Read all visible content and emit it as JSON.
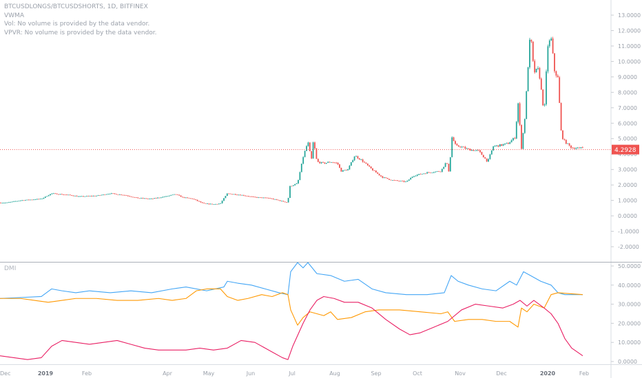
{
  "legend": {
    "symbol_line": "BTCUSDLONGS/BTCUSDSHORTS, 1D, BITFINEX",
    "indicator_1": "VWMA",
    "indicator_2": "Vol: No volume is provided by the data vendor.",
    "indicator_3": "VPVR: No volume is provided by the data vendor."
  },
  "lower_pane_label": "DMI",
  "price_badge": "4.2928",
  "colors": {
    "up": "#26a69a",
    "down": "#ef5350",
    "price_line": "#ef5350",
    "plus_di": "#42a5f5",
    "minus_di": "#ff9800",
    "adx": "#e91e63",
    "grid_divider": "#aab0b8"
  },
  "chart_data": [
    {
      "type": "candlestick",
      "title": "BTCUSDLONGS/BTCUSDSHORTS, 1D, BITFINEX",
      "ylim": [
        -3,
        13.6
      ],
      "y_ticks": [
        -2,
        -1,
        0,
        1,
        2,
        3,
        4,
        5,
        6,
        7,
        8,
        9,
        10,
        11,
        12,
        13
      ],
      "y_tick_labels": [
        "-2.0000",
        "-1.0000",
        "0.0000",
        "1.0000",
        "2.0000",
        "3.0000",
        "4.0000",
        "5.0000",
        "6.0000",
        "7.0000",
        "8.0000",
        "9.0000",
        "10.0000",
        "11.0000",
        "12.0000",
        "13.0000"
      ],
      "last_price": 4.2928,
      "x_labels": [
        "Dec",
        "2019",
        "Feb",
        "Apr",
        "May",
        "Jun",
        "Jul",
        "Aug",
        "Sep",
        "Oct",
        "Nov",
        "Dec",
        "2020",
        "Feb"
      ],
      "close_series_keypoints": [
        [
          0,
          0.85
        ],
        [
          10,
          0.85
        ],
        [
          30,
          1.0
        ],
        [
          60,
          1.1
        ],
        [
          75,
          1.45
        ],
        [
          100,
          1.35
        ],
        [
          115,
          1.25
        ],
        [
          140,
          1.3
        ],
        [
          160,
          1.45
        ],
        [
          180,
          1.35
        ],
        [
          200,
          1.15
        ],
        [
          220,
          1.1
        ],
        [
          240,
          1.25
        ],
        [
          255,
          1.4
        ],
        [
          265,
          1.2
        ],
        [
          280,
          1.1
        ],
        [
          295,
          0.8
        ],
        [
          310,
          0.75
        ],
        [
          320,
          0.8
        ],
        [
          330,
          1.45
        ],
        [
          350,
          1.35
        ],
        [
          370,
          1.2
        ],
        [
          390,
          1.15
        ],
        [
          405,
          1.0
        ],
        [
          418,
          0.85
        ],
        [
          420,
          1.9
        ],
        [
          432,
          2.1
        ],
        [
          440,
          3.8
        ],
        [
          447,
          4.8
        ],
        [
          452,
          3.6
        ],
        [
          455,
          4.9
        ],
        [
          460,
          3.5
        ],
        [
          470,
          3.4
        ],
        [
          480,
          3.5
        ],
        [
          490,
          3.4
        ],
        [
          495,
          2.9
        ],
        [
          505,
          3.0
        ],
        [
          515,
          3.9
        ],
        [
          525,
          3.6
        ],
        [
          540,
          3.0
        ],
        [
          555,
          2.5
        ],
        [
          570,
          2.3
        ],
        [
          590,
          2.2
        ],
        [
          600,
          2.6
        ],
        [
          620,
          2.8
        ],
        [
          640,
          2.9
        ],
        [
          648,
          3.5
        ],
        [
          652,
          2.8
        ],
        [
          656,
          5.1
        ],
        [
          662,
          4.5
        ],
        [
          668,
          4.5
        ],
        [
          680,
          4.3
        ],
        [
          695,
          4.2
        ],
        [
          708,
          3.5
        ],
        [
          716,
          4.5
        ],
        [
          730,
          4.6
        ],
        [
          738,
          4.7
        ],
        [
          748,
          5.1
        ],
        [
          752,
          7.4
        ],
        [
          757,
          4.4
        ],
        [
          762,
          6.4
        ],
        [
          767,
          10.0
        ],
        [
          770,
          11.9
        ],
        [
          775,
          9.3
        ],
        [
          782,
          9.5
        ],
        [
          790,
          6.6
        ],
        [
          795,
          11.0
        ],
        [
          800,
          11.5
        ],
        [
          805,
          9.4
        ],
        [
          810,
          8.9
        ],
        [
          815,
          5.2
        ],
        [
          820,
          4.8
        ],
        [
          830,
          4.4
        ],
        [
          838,
          4.4
        ],
        [
          843,
          4.3
        ],
        [
          845,
          5.0
        ],
        [
          846,
          4.29
        ]
      ]
    },
    {
      "type": "line",
      "title": "DMI",
      "ylim": [
        -1,
        53
      ],
      "y_ticks": [
        0,
        10,
        20,
        30,
        40,
        50
      ],
      "y_tick_labels": [
        "0.0000",
        "10.0000",
        "20.0000",
        "30.0000",
        "40.0000",
        "50.0000"
      ],
      "series": [
        {
          "color": "#42a5f5",
          "points": [
            [
              0,
              33
            ],
            [
              30,
              33.5
            ],
            [
              60,
              34
            ],
            [
              75,
              38
            ],
            [
              90,
              37
            ],
            [
              110,
              36
            ],
            [
              130,
              37
            ],
            [
              160,
              36
            ],
            [
              190,
              37
            ],
            [
              220,
              36
            ],
            [
              250,
              38
            ],
            [
              270,
              39
            ],
            [
              300,
              37
            ],
            [
              325,
              39
            ],
            [
              330,
              42
            ],
            [
              345,
              41
            ],
            [
              365,
              40
            ],
            [
              385,
              38
            ],
            [
              405,
              36
            ],
            [
              418,
              35
            ],
            [
              422,
              47
            ],
            [
              432,
              52
            ],
            [
              440,
              49
            ],
            [
              447,
              56
            ],
            [
              460,
              46
            ],
            [
              480,
              45
            ],
            [
              500,
              42
            ],
            [
              520,
              43
            ],
            [
              540,
              38
            ],
            [
              560,
              36
            ],
            [
              590,
              35
            ],
            [
              620,
              35
            ],
            [
              645,
              36
            ],
            [
              655,
              45
            ],
            [
              665,
              42
            ],
            [
              680,
              40
            ],
            [
              700,
              38
            ],
            [
              720,
              37
            ],
            [
              740,
              42
            ],
            [
              750,
              40
            ],
            [
              760,
              47
            ],
            [
              770,
              45
            ],
            [
              785,
              42
            ],
            [
              800,
              40
            ],
            [
              810,
              36
            ],
            [
              820,
              35
            ],
            [
              846,
              35
            ]
          ]
        },
        {
          "color": "#ff9800",
          "points": [
            [
              0,
              33
            ],
            [
              30,
              33
            ],
            [
              50,
              32
            ],
            [
              70,
              31
            ],
            [
              90,
              32
            ],
            [
              110,
              33
            ],
            [
              140,
              33
            ],
            [
              170,
              32
            ],
            [
              200,
              32
            ],
            [
              230,
              33
            ],
            [
              250,
              32
            ],
            [
              270,
              33
            ],
            [
              285,
              37
            ],
            [
              300,
              38
            ],
            [
              320,
              38
            ],
            [
              330,
              34
            ],
            [
              345,
              32
            ],
            [
              360,
              33
            ],
            [
              380,
              35
            ],
            [
              395,
              34
            ],
            [
              410,
              36
            ],
            [
              418,
              35
            ],
            [
              422,
              27
            ],
            [
              432,
              19
            ],
            [
              440,
              23
            ],
            [
              450,
              26
            ],
            [
              470,
              24
            ],
            [
              480,
              26
            ],
            [
              490,
              22
            ],
            [
              510,
              23
            ],
            [
              530,
              26
            ],
            [
              550,
              27
            ],
            [
              580,
              27
            ],
            [
              610,
              26
            ],
            [
              640,
              25
            ],
            [
              650,
              26
            ],
            [
              660,
              21
            ],
            [
              680,
              22
            ],
            [
              700,
              22
            ],
            [
              720,
              21
            ],
            [
              740,
              21
            ],
            [
              752,
              18
            ],
            [
              757,
              28
            ],
            [
              765,
              26
            ],
            [
              775,
              30
            ],
            [
              790,
              28
            ],
            [
              800,
              35
            ],
            [
              810,
              36
            ],
            [
              846,
              35
            ]
          ]
        },
        {
          "color": "#e91e63",
          "points": [
            [
              0,
              3
            ],
            [
              20,
              2
            ],
            [
              40,
              1
            ],
            [
              60,
              2
            ],
            [
              75,
              8
            ],
            [
              90,
              11
            ],
            [
              110,
              10
            ],
            [
              130,
              9
            ],
            [
              150,
              10
            ],
            [
              170,
              11
            ],
            [
              190,
              9
            ],
            [
              210,
              7
            ],
            [
              230,
              6
            ],
            [
              250,
              6
            ],
            [
              270,
              6
            ],
            [
              290,
              7
            ],
            [
              310,
              6
            ],
            [
              330,
              7
            ],
            [
              350,
              11
            ],
            [
              370,
              10
            ],
            [
              395,
              5
            ],
            [
              410,
              2
            ],
            [
              418,
              1
            ],
            [
              425,
              8
            ],
            [
              440,
              20
            ],
            [
              450,
              27
            ],
            [
              460,
              32
            ],
            [
              470,
              34
            ],
            [
              485,
              33
            ],
            [
              500,
              31
            ],
            [
              520,
              31
            ],
            [
              540,
              28
            ],
            [
              560,
              22
            ],
            [
              580,
              17
            ],
            [
              595,
              14
            ],
            [
              610,
              15
            ],
            [
              630,
              18
            ],
            [
              650,
              21
            ],
            [
              670,
              27
            ],
            [
              690,
              30
            ],
            [
              710,
              29
            ],
            [
              730,
              28
            ],
            [
              745,
              30
            ],
            [
              755,
              32
            ],
            [
              765,
              29
            ],
            [
              775,
              32
            ],
            [
              790,
              28
            ],
            [
              800,
              25
            ],
            [
              810,
              20
            ],
            [
              820,
              12
            ],
            [
              830,
              7
            ],
            [
              846,
              3
            ]
          ]
        }
      ]
    }
  ]
}
